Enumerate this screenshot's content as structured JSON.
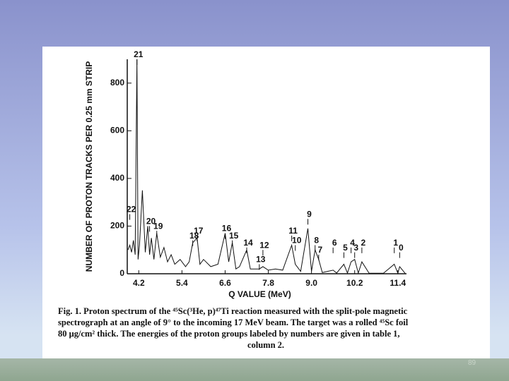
{
  "chart_data": {
    "type": "line",
    "x_label": "Q VALUE (MeV)",
    "y_label": "NUMBER OF PROTON TRACKS PER 0.25 mm STRIP",
    "x": [
      3.9,
      3.95,
      4.0,
      4.05,
      4.1,
      4.15,
      4.18,
      4.22,
      4.3,
      4.38,
      4.45,
      4.5,
      4.55,
      4.62,
      4.7,
      4.8,
      4.9,
      5.0,
      5.1,
      5.2,
      5.35,
      5.5,
      5.6,
      5.7,
      5.82,
      5.9,
      6.0,
      6.2,
      6.4,
      6.6,
      6.7,
      6.8,
      6.9,
      7.0,
      7.2,
      7.3,
      7.55,
      7.65,
      7.8,
      8.0,
      8.2,
      8.45,
      8.55,
      8.7,
      8.9,
      9.0,
      9.1,
      9.2,
      9.3,
      9.6,
      9.7,
      9.9,
      10.0,
      10.1,
      10.2,
      10.3,
      10.4,
      10.6,
      11.0,
      11.3,
      11.4,
      11.45,
      11.6
    ],
    "values": [
      100,
      120,
      90,
      140,
      80,
      900,
      60,
      120,
      350,
      90,
      200,
      80,
      150,
      60,
      170,
      70,
      110,
      50,
      80,
      40,
      60,
      30,
      50,
      130,
      150,
      40,
      60,
      30,
      40,
      170,
      50,
      130,
      20,
      30,
      100,
      20,
      20,
      30,
      15,
      20,
      15,
      120,
      40,
      10,
      190,
      10,
      100,
      60,
      5,
      15,
      3,
      40,
      3,
      50,
      60,
      3,
      50,
      2,
      2,
      40,
      2,
      30,
      2
    ],
    "color": "#111111",
    "xlim": [
      3.88,
      11.64
    ],
    "ylim": [
      0,
      900
    ],
    "xticks": [
      4.2,
      5.4,
      6.6,
      7.8,
      {
        "value": 9,
        "label": "9.0"
      },
      10.2,
      11.4
    ],
    "yticks": [
      0,
      200,
      400,
      600,
      800
    ],
    "grid": false,
    "annotations": [
      {
        "text": "21",
        "x": 4.15,
        "y": 900
      },
      {
        "text": "22",
        "x": 3.95,
        "y": 250
      },
      {
        "text": "20",
        "x": 4.5,
        "y": 200
      },
      {
        "text": "19",
        "x": 4.7,
        "y": 180
      },
      {
        "text": "18",
        "x": 5.7,
        "y": 140
      },
      {
        "text": "17",
        "x": 5.82,
        "y": 160
      },
      {
        "text": "16",
        "x": 6.6,
        "y": 170
      },
      {
        "text": "15",
        "x": 6.8,
        "y": 140
      },
      {
        "text": "14",
        "x": 7.2,
        "y": 110
      },
      {
        "text": "13",
        "x": 7.55,
        "y": 40
      },
      {
        "text": "12",
        "x": 7.65,
        "y": 100
      },
      {
        "text": "11",
        "x": 8.45,
        "y": 160
      },
      {
        "text": "10",
        "x": 8.55,
        "y": 120
      },
      {
        "text": "9",
        "x": 8.9,
        "y": 230
      },
      {
        "text": "8",
        "x": 9.1,
        "y": 120
      },
      {
        "text": "7",
        "x": 9.2,
        "y": 80
      },
      {
        "text": "6",
        "x": 9.6,
        "y": 110
      },
      {
        "text": "5",
        "x": 9.9,
        "y": 90
      },
      {
        "text": "4",
        "x": 10.1,
        "y": 110
      },
      {
        "text": "3",
        "x": 10.2,
        "y": 90
      },
      {
        "text": "2",
        "x": 10.4,
        "y": 110
      },
      {
        "text": "1",
        "x": 11.3,
        "y": 110
      },
      {
        "text": "0",
        "x": 11.45,
        "y": 90
      }
    ]
  },
  "caption": [
    "Fig. 1. Proton spectrum of the ⁴⁵Sc(³He, p)⁴⁷Ti reaction measured with the split-pole magnetic",
    "spectrograph at an angle of 9° to the incoming 17 MeV beam. The target was a rolled ⁴⁵Sc foil",
    "80 μg/cm² thick. The energies of the proton groups labeled by numbers are given in table 1,",
    "column 2."
  ],
  "slide_number": "89"
}
